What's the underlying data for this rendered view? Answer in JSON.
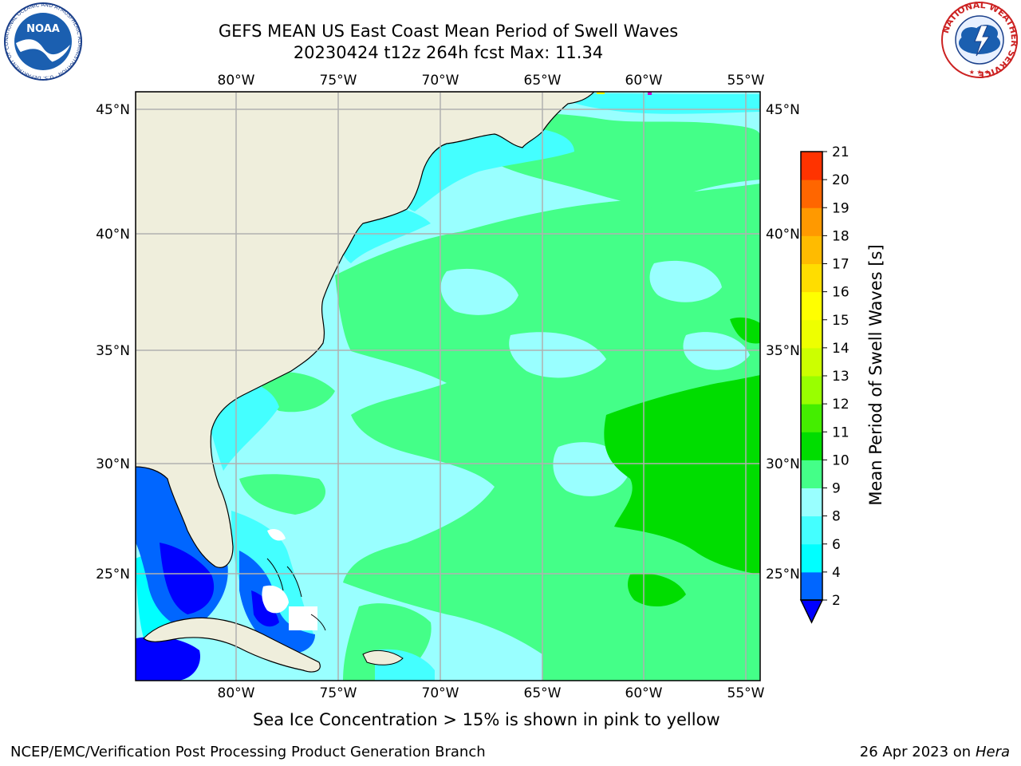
{
  "header": {
    "title_line1": "GEFS MEAN US East Coast Mean Period of Swell Waves",
    "title_line2": "20230424 t12z 264h fcst   Max: 11.34"
  },
  "logos": {
    "noaa": {
      "text": "NOAA",
      "ring_text": "NATIONAL OCEANIC AND ATMOSPHERIC ADMINISTRATION · U.S. DEPARTMENT OF COMMERCE"
    },
    "nws": {
      "ring_text": "NATIONAL WEATHER SERVICE"
    }
  },
  "map": {
    "lon_labels": [
      "80°W",
      "75°W",
      "70°W",
      "65°W",
      "60°W",
      "55°W"
    ],
    "lat_labels": [
      "45°N",
      "40°N",
      "35°N",
      "30°N",
      "25°N"
    ],
    "colors": {
      "land": "#efeedc",
      "coast": "#000000",
      "grid": "#b0b0b0"
    }
  },
  "colorbar": {
    "title": "Mean Period of Swell Waves [s]",
    "ticks": [
      "2",
      "4",
      "6",
      "8",
      "9",
      "10",
      "11",
      "12",
      "13",
      "14",
      "15",
      "16",
      "17",
      "18",
      "19",
      "20",
      "21"
    ],
    "colors": [
      "#0066ff",
      "#00ffff",
      "#44ffff",
      "#99ffff",
      "#44ff88",
      "#00dd00",
      "#44ee00",
      "#99ff00",
      "#ccff00",
      "#eeff00",
      "#ffff00",
      "#ffdd00",
      "#ffbb00",
      "#ff9900",
      "#ff6600",
      "#ff3300",
      "#ff0000"
    ],
    "extend_color": "#0000ff"
  },
  "notes": {
    "sea_ice": "Sea Ice Concentration > 15% is shown in pink to yellow"
  },
  "footer": {
    "left": "NCEP/EMC/Verification Post Processing Product Generation Branch",
    "date": "26 Apr 2023 on ",
    "machine": "Hera"
  }
}
